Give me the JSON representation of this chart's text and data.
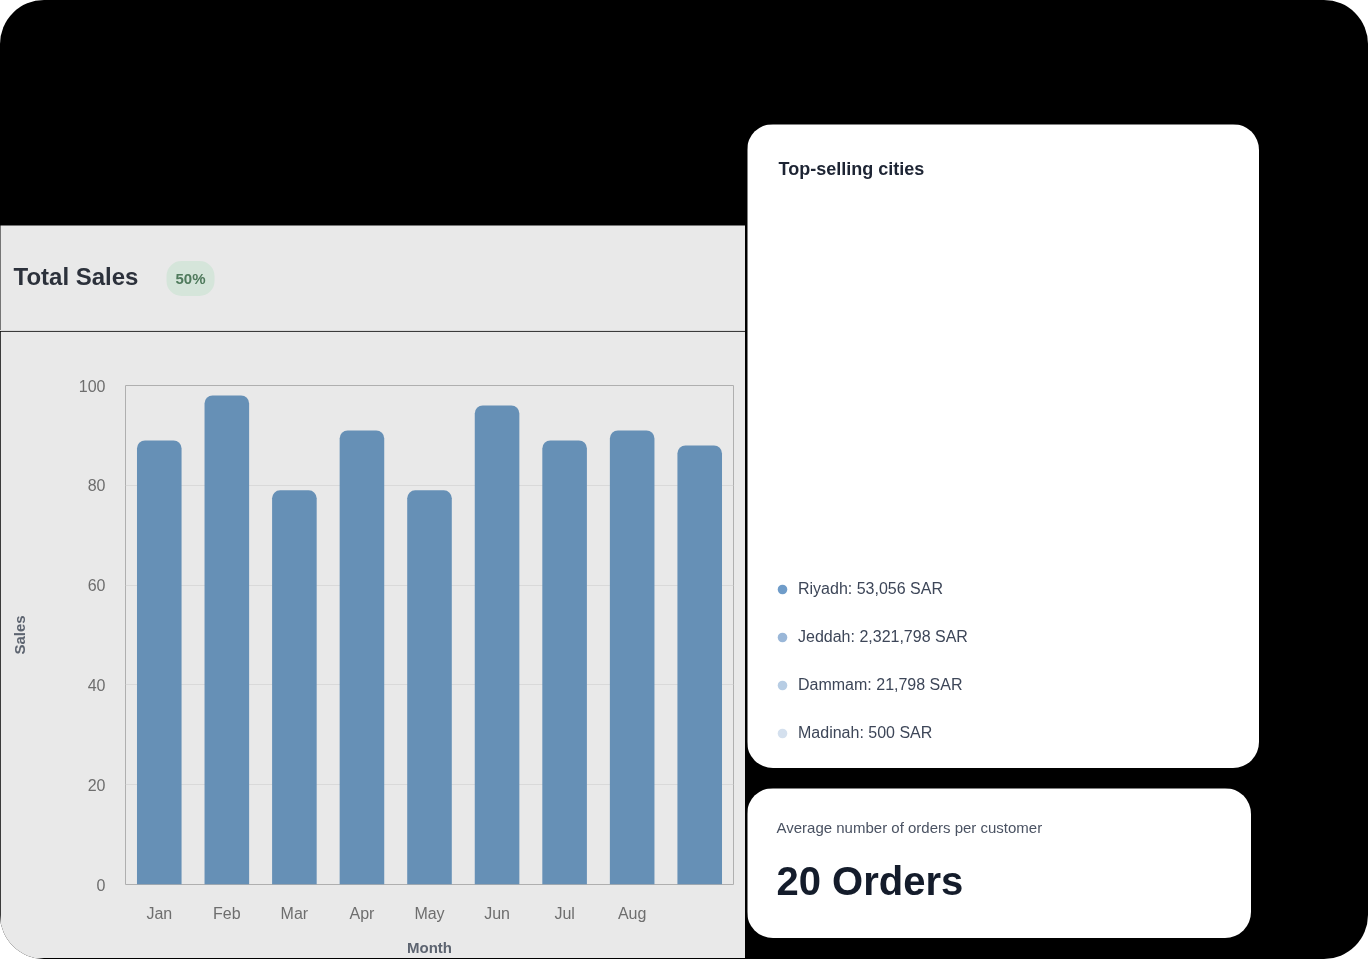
{
  "chart_data": [
    {
      "type": "bar",
      "title": "Total Sales",
      "subtitle": "50%",
      "xlabel": "Month",
      "ylabel": "Sales",
      "categories": [
        "Jan",
        "Feb",
        "Mar",
        "Apr",
        "May",
        "Jun",
        "Jul",
        "Aug",
        null
      ],
      "values": [
        89,
        98,
        79,
        91,
        79,
        96,
        89,
        91,
        88
      ],
      "color": "#6690b6",
      "ylim": [
        0,
        100
      ],
      "yticks": [
        0,
        20,
        40,
        60,
        80,
        100
      ],
      "grid": "y"
    },
    {
      "type": "other",
      "title": "Top-selling cities",
      "legend": "bottom left",
      "series": [
        {
          "name": "Riyadh: 53,056 SAR",
          "color": "#6f9cc9"
        },
        {
          "name": "Jeddah: 2,321,798 SAR",
          "color": "#9ab7d8"
        },
        {
          "name": "Dammam: 21,798 SAR",
          "color": "#b7cde4"
        },
        {
          "name": "Madinah: 500 SAR",
          "color": "#d4e0ee"
        }
      ]
    },
    {
      "type": "other",
      "title": "Average number of orders per customer",
      "annotations": [
        "20 Orders"
      ]
    }
  ]
}
